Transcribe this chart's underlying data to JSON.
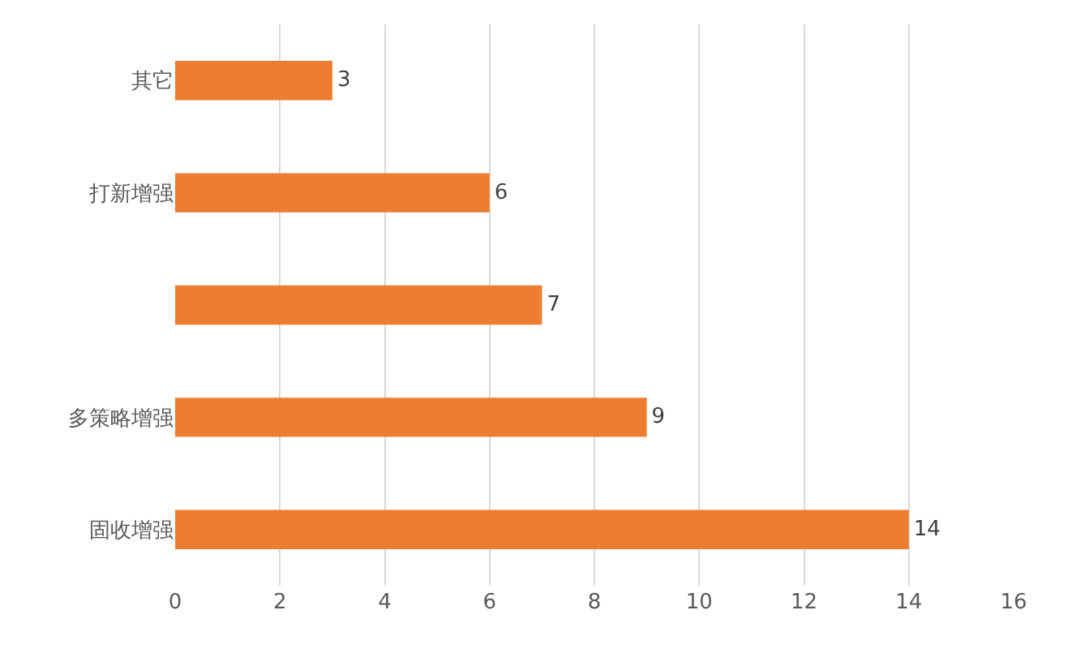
{
  "chart_data": {
    "type": "bar",
    "orientation": "horizontal",
    "categories": [
      "其它",
      "打新增强",
      null,
      "多策略增强",
      "固收增强"
    ],
    "values": [
      3,
      6,
      7,
      9,
      14
    ],
    "color": "#ed7d31",
    "xlim": [
      0,
      16
    ],
    "xticks": [
      0,
      2,
      4,
      6,
      8,
      10,
      12,
      14,
      16
    ],
    "grid": "x",
    "data_labels": true
  }
}
